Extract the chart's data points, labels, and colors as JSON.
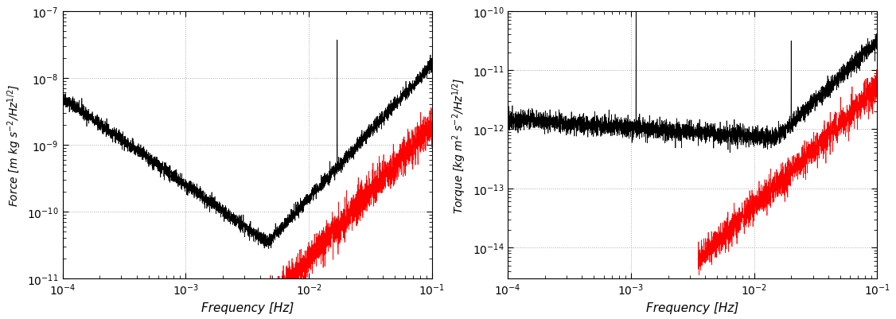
{
  "left_ylabel": "Force [m kg s$^{-2}$/Hz$^{1/2}$]",
  "right_ylabel": "Torque [kg m$^2$ s$^{-2}$/Hz$^{1/2}$]",
  "xlabel": "Frequency [Hz]",
  "xlim_left": [
    0.0001,
    0.1
  ],
  "xlim_right": [
    0.0001,
    0.1
  ],
  "left_ylim": [
    1e-11,
    1e-07
  ],
  "right_ylim": [
    3e-15,
    1e-10
  ],
  "grid_color": "#aaaaaa",
  "line_color_black": "#000000",
  "line_color_red": "#ff0000",
  "bg_color": "#ffffff",
  "linewidth": 0.5,
  "figsize": [
    11.26,
    4.02
  ],
  "dpi": 100
}
